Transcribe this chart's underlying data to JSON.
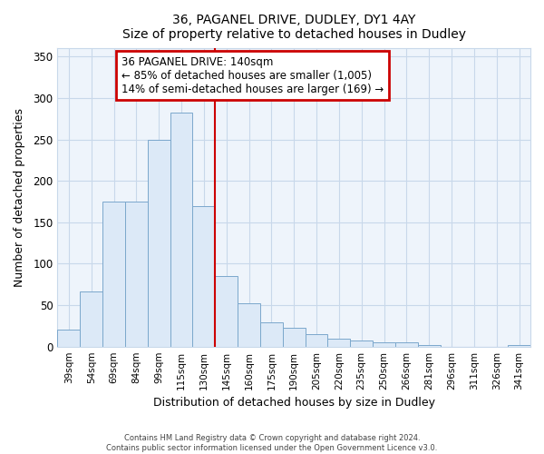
{
  "title": "36, PAGANEL DRIVE, DUDLEY, DY1 4AY",
  "subtitle": "Size of property relative to detached houses in Dudley",
  "xlabel": "Distribution of detached houses by size in Dudley",
  "ylabel": "Number of detached properties",
  "footer_line1": "Contains HM Land Registry data © Crown copyright and database right 2024.",
  "footer_line2": "Contains public sector information licensed under the Open Government Licence v3.0.",
  "bar_labels": [
    "39sqm",
    "54sqm",
    "69sqm",
    "84sqm",
    "99sqm",
    "115sqm",
    "130sqm",
    "145sqm",
    "160sqm",
    "175sqm",
    "190sqm",
    "205sqm",
    "220sqm",
    "235sqm",
    "250sqm",
    "266sqm",
    "281sqm",
    "296sqm",
    "311sqm",
    "326sqm",
    "341sqm"
  ],
  "bar_values": [
    20,
    67,
    175,
    175,
    250,
    283,
    170,
    85,
    52,
    29,
    23,
    15,
    10,
    7,
    5,
    5,
    2,
    0,
    0,
    0,
    2
  ],
  "bar_color": "#dce9f7",
  "bar_edge_color": "#7ba7cc",
  "vline_color": "#cc0000",
  "annotation_title": "36 PAGANEL DRIVE: 140sqm",
  "annotation_line1": "← 85% of detached houses are smaller (1,005)",
  "annotation_line2": "14% of semi-detached houses are larger (169) →",
  "annotation_box_edge": "#cc0000",
  "grid_color": "#c8d8ea",
  "ylim": [
    0,
    360
  ],
  "yticks": [
    0,
    50,
    100,
    150,
    200,
    250,
    300,
    350
  ],
  "axes_bg": "#eef4fb",
  "fig_bg": "#ffffff"
}
